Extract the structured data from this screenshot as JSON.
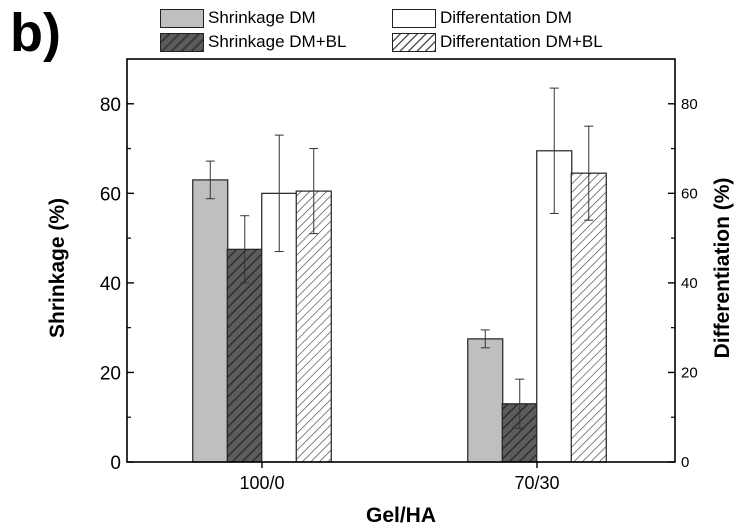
{
  "panel_label": "b)",
  "chart_data": {
    "type": "bar",
    "categories": [
      "100/0",
      "70/30"
    ],
    "xlabel": "Gel/HA",
    "ylabel_left": "Shrinkage (%)",
    "ylabel_right": "Differentiation (%)",
    "ylim": [
      0,
      90
    ],
    "yticks": [
      0,
      20,
      40,
      60,
      80
    ],
    "grid": false,
    "legend_position": "top",
    "series": [
      {
        "name": "Shrinkage DM",
        "axis": "left",
        "style": "solid-gray",
        "values": [
          63,
          27.5
        ],
        "errors": [
          4.2,
          2
        ]
      },
      {
        "name": "Shrinkage DM+BL",
        "axis": "left",
        "style": "hatch-dark",
        "values": [
          47.5,
          13
        ],
        "errors": [
          7.5,
          5.5
        ]
      },
      {
        "name": "Differentation DM",
        "axis": "right",
        "style": "solid-white",
        "values": [
          60,
          69.5
        ],
        "errors": [
          13,
          14
        ]
      },
      {
        "name": "Differentation DM+BL",
        "axis": "right",
        "style": "hatch-light",
        "values": [
          60.5,
          64.5
        ],
        "errors": [
          9.5,
          10.5
        ]
      }
    ],
    "colors": {
      "gray": "#bfbfbf",
      "dark": "#5c5c5c",
      "white": "#ffffff",
      "stroke": "#222222"
    }
  }
}
